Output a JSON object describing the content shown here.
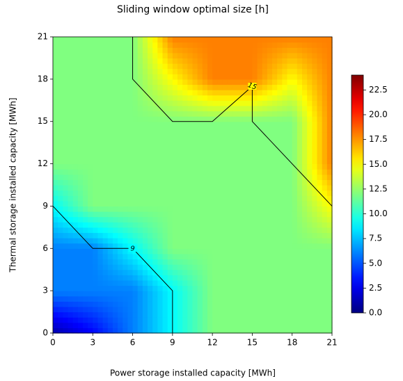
{
  "chart_data": {
    "type": "contourf",
    "title": "Sliding window optimal size [h]",
    "xlabel": "Power storage installed capacity [MWh]",
    "ylabel": "Thermal storage installed capacity [MWh]",
    "x": [
      0,
      3,
      6,
      9,
      12,
      15,
      18,
      21
    ],
    "y": [
      0,
      3,
      6,
      9,
      12,
      15,
      18,
      21
    ],
    "z": [
      [
        1,
        3,
        6,
        9,
        12,
        12,
        12,
        12
      ],
      [
        6,
        6,
        6,
        9,
        12,
        12,
        12,
        12
      ],
      [
        6,
        6,
        9,
        12,
        12,
        12,
        12,
        12
      ],
      [
        9,
        12,
        12,
        12,
        12,
        12,
        12,
        15
      ],
      [
        12,
        12,
        12,
        12,
        12,
        12,
        12,
        18
      ],
      [
        12,
        12,
        12,
        12,
        12,
        12,
        12,
        18
      ],
      [
        12,
        12,
        12,
        15,
        18,
        18,
        15,
        18
      ],
      [
        12,
        12,
        12,
        18,
        18,
        18,
        18,
        18
      ]
    ],
    "contour_lines": [
      {
        "level": 9,
        "x": [
          0,
          3,
          6,
          9,
          9
        ],
        "y": [
          9,
          6,
          6,
          3,
          0
        ],
        "label_x": 6,
        "label_y": 6
      },
      {
        "level": 15,
        "x": [
          6,
          6,
          9,
          12,
          15,
          15,
          21
        ],
        "y": [
          21,
          18,
          15,
          15,
          17.5,
          15,
          9
        ],
        "label_x": 15,
        "label_y": 17.5
      }
    ],
    "colormap": "jet",
    "xlim": [
      0,
      21
    ],
    "ylim": [
      0,
      21
    ],
    "xticks": [
      0,
      3,
      6,
      9,
      12,
      15,
      18,
      21
    ],
    "yticks": [
      0,
      3,
      6,
      9,
      12,
      15,
      18,
      21
    ],
    "clim": [
      0,
      24
    ],
    "cticks": [
      {
        "value": 0,
        "label": "0.0"
      },
      2.5,
      {
        "value": 5,
        "label": "5.0"
      },
      7.5,
      {
        "value": 10,
        "label": "10.0"
      },
      12.5,
      {
        "value": 15,
        "label": "15.0"
      },
      17.5,
      {
        "value": 20,
        "label": "20.0"
      },
      22.5
    ]
  }
}
